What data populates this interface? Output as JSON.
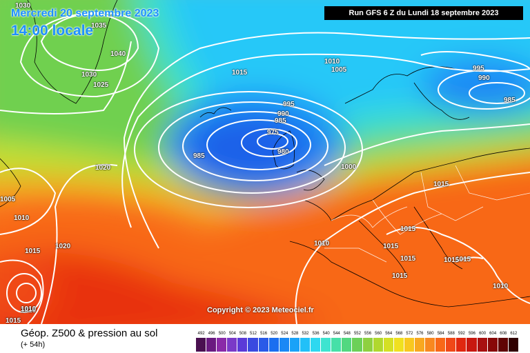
{
  "header": {
    "date": "Mercredi 20 septembre 2023",
    "time": "14:00 locale",
    "run": "Run GFS 6 Z du Lundi 18 septembre 2023"
  },
  "copyright": "Copyright © 2023 Meteociel.fr",
  "legend": {
    "title": "Géop. Z500 & pression au sol",
    "subtitle": "(+ 54h)",
    "values": [
      "492",
      "496",
      "500",
      "504",
      "508",
      "512",
      "516",
      "520",
      "524",
      "528",
      "532",
      "536",
      "540",
      "544",
      "548",
      "552",
      "556",
      "560",
      "564",
      "568",
      "572",
      "576",
      "580",
      "584",
      "588",
      "592",
      "596",
      "600",
      "604",
      "608",
      "612"
    ],
    "colors": [
      "#4a1050",
      "#6a1a80",
      "#8a2aa8",
      "#7a3ac8",
      "#5a3ad8",
      "#3a4ae0",
      "#2a5ae8",
      "#1a6ef0",
      "#1a88f5",
      "#1aa2f8",
      "#22c0f8",
      "#2ed8f0",
      "#3ee4d0",
      "#46e0a8",
      "#52d880",
      "#6cd058",
      "#8ed040",
      "#b0d82e",
      "#d4e024",
      "#f0e020",
      "#f8c820",
      "#f8a820",
      "#f88820",
      "#f86818",
      "#f04818",
      "#e02810",
      "#c81810",
      "#a81010",
      "#880808",
      "#600404",
      "#300000"
    ]
  },
  "isobar_labels": [
    "1030",
    "1035",
    "1040",
    "1030",
    "1025",
    "1015",
    "1020",
    "1010",
    "1020",
    "1015",
    "1010",
    "1005",
    "1015",
    "1010",
    "995",
    "990",
    "985",
    "975",
    "980",
    "985",
    "1010",
    "1005",
    "995",
    "990",
    "985",
    "1000",
    "1015",
    "1015",
    "1015",
    "1015",
    "1015",
    "1015",
    "1015",
    "1010",
    "1010"
  ]
}
